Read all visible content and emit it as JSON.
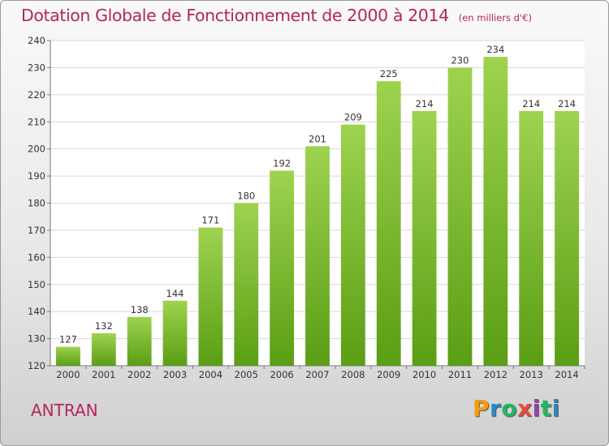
{
  "title": "Dotation Globale de Fonctionnement de 2000 à 2014",
  "unit": "(en milliers d'€)",
  "commune": "ANTRAN",
  "logo": {
    "letters": [
      "P",
      "r",
      "o",
      "x",
      "i",
      "t",
      "i"
    ],
    "colors": [
      "#f39c12",
      "#2e86c1",
      "#28b463",
      "#e74c3c",
      "#8e44ad",
      "#28b463",
      "#2e86c1"
    ]
  },
  "colors": {
    "bar_light": "#9ed34f",
    "bar_dark": "#5a9e14",
    "accent": "#b5255e"
  },
  "chart_data": {
    "type": "bar",
    "categories": [
      "2000",
      "2001",
      "2002",
      "2003",
      "2004",
      "2005",
      "2006",
      "2007",
      "2008",
      "2009",
      "2010",
      "2011",
      "2012",
      "2013",
      "2014"
    ],
    "values": [
      127,
      132,
      138,
      144,
      171,
      180,
      192,
      201,
      209,
      225,
      214,
      230,
      234,
      214,
      214
    ],
    "title": "Dotation Globale de Fonctionnement de 2000 à 2014",
    "xlabel": "",
    "ylabel": "",
    "ylim": [
      120,
      240
    ],
    "yticks": [
      120,
      130,
      140,
      150,
      160,
      170,
      180,
      190,
      200,
      210,
      220,
      230,
      240
    ],
    "grid": true,
    "legend": "none"
  }
}
